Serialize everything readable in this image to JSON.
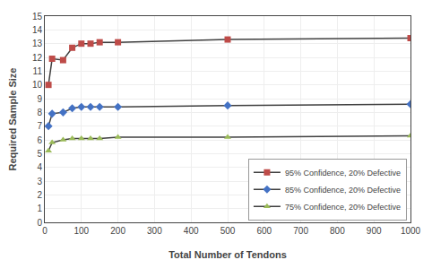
{
  "chart_data": {
    "type": "line",
    "xlabel": "Total Number of Tendons",
    "ylabel": "Required Sample Size",
    "x": [
      10,
      20,
      50,
      75,
      100,
      125,
      150,
      200,
      500,
      1000
    ],
    "color": "#404040",
    "series": [
      {
        "name": "95% Confidence, 20% Defective",
        "color": "#BE4B48",
        "marker": "square",
        "values": [
          10.0,
          11.9,
          11.8,
          12.7,
          13.0,
          13.0,
          13.1,
          13.1,
          13.3,
          13.4
        ]
      },
      {
        "name": "85% Confidence, 20% Defective",
        "color": "#4472C4",
        "marker": "diamond",
        "values": [
          7.0,
          7.9,
          8.0,
          8.3,
          8.4,
          8.4,
          8.4,
          8.4,
          8.5,
          8.6
        ]
      },
      {
        "name": "75% Confidence, 20% Defective",
        "color": "#9BBB59",
        "marker": "triangle-up",
        "values": [
          5.2,
          5.8,
          6.0,
          6.1,
          6.1,
          6.1,
          6.1,
          6.2,
          6.2,
          6.3
        ]
      }
    ],
    "xlim": [
      0,
      1000
    ],
    "ylim": [
      0,
      15
    ],
    "xticks": [
      0,
      100,
      200,
      300,
      400,
      500,
      600,
      700,
      800,
      900,
      1000
    ],
    "yticks": [
      0,
      1,
      2,
      3,
      4,
      5,
      6,
      7,
      8,
      9,
      10,
      11,
      12,
      13,
      14,
      15
    ],
    "grid": true,
    "legend": "lower right"
  }
}
